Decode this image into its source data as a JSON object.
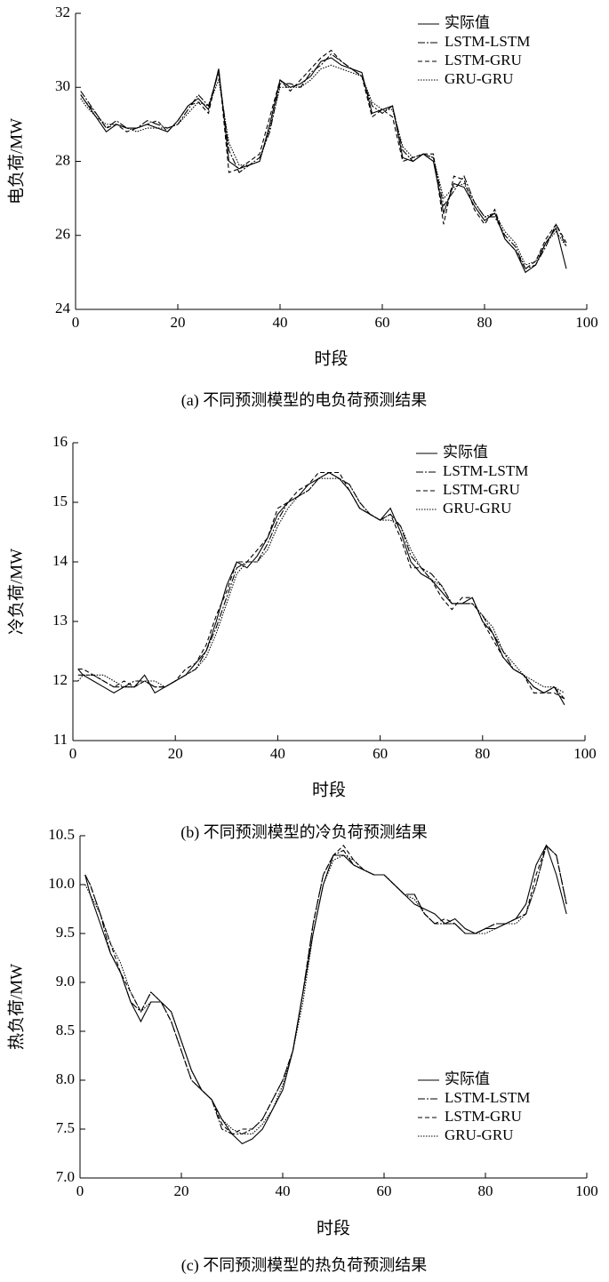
{
  "chart_data": [
    {
      "type": "line",
      "caption": "(a) 不同预测模型的电负荷预测结果",
      "x_label": "时段",
      "y_label": "电负荷/MW",
      "xlim": [
        0,
        100
      ],
      "xticks": [
        0,
        20,
        40,
        60,
        80,
        100
      ],
      "ylim": [
        24,
        32
      ],
      "yticks": [
        24,
        26,
        28,
        30,
        32
      ],
      "legend": "upper right",
      "x": [
        1,
        2,
        4,
        6,
        8,
        10,
        12,
        14,
        16,
        18,
        20,
        22,
        24,
        26,
        28,
        30,
        32,
        34,
        36,
        38,
        40,
        42,
        44,
        46,
        48,
        50,
        52,
        54,
        56,
        58,
        60,
        62,
        64,
        66,
        68,
        70,
        72,
        74,
        76,
        78,
        80,
        82,
        84,
        86,
        88,
        90,
        92,
        94,
        96
      ],
      "series": [
        {
          "name": "实际值",
          "color": "#000000",
          "linestyle": "solid",
          "values": [
            29.8,
            29.6,
            29.2,
            28.8,
            29.0,
            28.9,
            28.9,
            29.0,
            28.9,
            28.8,
            29.1,
            29.5,
            29.7,
            29.4,
            30.5,
            28.0,
            27.8,
            27.9,
            28.0,
            29.0,
            30.2,
            30.0,
            30.1,
            30.3,
            30.7,
            30.8,
            30.6,
            30.5,
            30.4,
            29.3,
            29.4,
            29.5,
            28.1,
            28.0,
            28.2,
            28.0,
            26.6,
            27.4,
            27.3,
            26.8,
            26.4,
            26.6,
            25.9,
            25.6,
            25.0,
            25.2,
            25.8,
            26.2,
            25.1
          ]
        },
        {
          "name": "LSTM-LSTM",
          "color": "#000000",
          "linestyle": "dashdot",
          "values": [
            29.9,
            29.7,
            29.3,
            28.9,
            29.1,
            28.9,
            28.9,
            29.1,
            29.0,
            28.9,
            29.0,
            29.4,
            29.8,
            29.5,
            30.4,
            28.3,
            27.7,
            27.9,
            28.1,
            28.8,
            30.1,
            30.1,
            30.0,
            30.4,
            30.6,
            30.9,
            30.7,
            30.5,
            30.3,
            29.5,
            29.3,
            29.5,
            28.3,
            28.0,
            28.2,
            28.1,
            26.8,
            27.2,
            27.6,
            26.9,
            26.5,
            26.5,
            26.0,
            25.7,
            25.1,
            25.2,
            25.7,
            26.3,
            25.7
          ]
        },
        {
          "name": "LSTM-GRU",
          "color": "#000000",
          "linestyle": "dashed",
          "values": [
            29.8,
            29.6,
            29.3,
            28.9,
            29.0,
            28.8,
            28.9,
            29.0,
            29.1,
            28.8,
            29.1,
            29.5,
            29.6,
            29.3,
            30.5,
            27.7,
            27.8,
            28.0,
            28.2,
            29.2,
            30.2,
            29.9,
            30.2,
            30.5,
            30.8,
            31.0,
            30.7,
            30.5,
            30.3,
            29.2,
            29.4,
            29.2,
            28.0,
            28.1,
            28.2,
            28.2,
            26.3,
            27.6,
            27.5,
            26.7,
            26.3,
            26.7,
            25.9,
            25.6,
            25.1,
            25.3,
            25.9,
            26.3,
            25.8
          ]
        },
        {
          "name": "GRU-GRU",
          "color": "#000000",
          "linestyle": "dotted",
          "values": [
            29.7,
            29.5,
            29.2,
            29.0,
            29.0,
            28.9,
            28.8,
            28.9,
            28.9,
            28.9,
            29.0,
            29.3,
            29.6,
            29.5,
            30.2,
            28.5,
            27.9,
            27.9,
            28.0,
            28.9,
            30.0,
            30.0,
            30.0,
            30.2,
            30.5,
            30.6,
            30.5,
            30.4,
            30.3,
            29.6,
            29.4,
            29.4,
            28.4,
            28.1,
            28.2,
            28.1,
            27.0,
            27.3,
            27.4,
            26.9,
            26.5,
            26.6,
            26.1,
            25.8,
            25.2,
            25.3,
            25.8,
            26.1,
            25.7
          ]
        }
      ]
    },
    {
      "type": "line",
      "caption": "(b) 不同预测模型的冷负荷预测结果",
      "x_label": "时段",
      "y_label": "冷负荷/MW",
      "xlim": [
        0,
        100
      ],
      "xticks": [
        0,
        20,
        40,
        60,
        80,
        100
      ],
      "ylim": [
        11,
        16
      ],
      "yticks": [
        11,
        12,
        13,
        14,
        15,
        16
      ],
      "legend": "upper right",
      "x": [
        1,
        2,
        4,
        6,
        8,
        10,
        12,
        14,
        16,
        18,
        20,
        22,
        24,
        26,
        28,
        30,
        32,
        34,
        36,
        38,
        40,
        42,
        44,
        46,
        48,
        50,
        52,
        54,
        56,
        58,
        60,
        62,
        64,
        66,
        68,
        70,
        72,
        74,
        76,
        78,
        80,
        82,
        84,
        86,
        88,
        90,
        92,
        94,
        96
      ],
      "series": [
        {
          "name": "实际值",
          "color": "#000000",
          "linestyle": "solid",
          "values": [
            12.2,
            12.1,
            12.0,
            11.9,
            11.8,
            11.9,
            11.9,
            12.1,
            11.8,
            11.9,
            12.0,
            12.1,
            12.3,
            12.5,
            13.0,
            13.6,
            14.0,
            13.9,
            14.1,
            14.4,
            14.8,
            15.0,
            15.1,
            15.3,
            15.4,
            15.5,
            15.4,
            15.2,
            14.9,
            14.8,
            14.7,
            14.9,
            14.5,
            14.0,
            13.8,
            13.7,
            13.5,
            13.3,
            13.3,
            13.4,
            13.0,
            12.8,
            12.4,
            12.2,
            12.1,
            11.9,
            11.8,
            11.9,
            11.6
          ]
        },
        {
          "name": "LSTM-LSTM",
          "color": "#000000",
          "linestyle": "dashdot",
          "values": [
            12.1,
            12.1,
            12.1,
            12.0,
            11.9,
            11.9,
            12.0,
            12.0,
            11.9,
            11.9,
            12.0,
            12.1,
            12.2,
            12.5,
            12.9,
            13.4,
            13.9,
            14.0,
            14.0,
            14.3,
            14.7,
            15.0,
            15.1,
            15.2,
            15.4,
            15.5,
            15.4,
            15.3,
            15.0,
            14.8,
            14.7,
            14.8,
            14.6,
            14.1,
            13.9,
            13.8,
            13.6,
            13.3,
            13.3,
            13.3,
            13.1,
            12.8,
            12.5,
            12.2,
            12.1,
            11.9,
            11.8,
            11.9,
            11.7
          ]
        },
        {
          "name": "LSTM-GRU",
          "color": "#000000",
          "linestyle": "dashed",
          "values": [
            12.2,
            12.2,
            12.1,
            12.0,
            11.9,
            12.0,
            11.9,
            12.0,
            11.9,
            11.9,
            12.0,
            12.2,
            12.3,
            12.6,
            13.1,
            13.5,
            14.0,
            14.0,
            14.2,
            14.4,
            14.9,
            15.0,
            15.2,
            15.3,
            15.5,
            15.5,
            15.5,
            15.2,
            14.9,
            14.8,
            14.7,
            14.8,
            14.4,
            13.9,
            13.9,
            13.7,
            13.4,
            13.2,
            13.4,
            13.4,
            13.0,
            12.7,
            12.4,
            12.2,
            12.1,
            11.8,
            11.8,
            11.8,
            11.7
          ]
        },
        {
          "name": "GRU-GRU",
          "color": "#000000",
          "linestyle": "dotted",
          "values": [
            12.0,
            12.1,
            12.1,
            12.1,
            12.0,
            11.9,
            11.9,
            12.0,
            12.0,
            11.9,
            12.0,
            12.1,
            12.2,
            12.4,
            12.8,
            13.3,
            13.8,
            14.0,
            14.0,
            14.2,
            14.6,
            14.9,
            15.1,
            15.2,
            15.4,
            15.4,
            15.4,
            15.3,
            15.0,
            14.8,
            14.7,
            14.7,
            14.6,
            14.2,
            13.9,
            13.7,
            13.6,
            13.3,
            13.3,
            13.3,
            13.1,
            12.9,
            12.5,
            12.3,
            12.1,
            12.0,
            11.9,
            11.9,
            11.8
          ]
        }
      ]
    },
    {
      "type": "line",
      "caption": "(c) 不同预测模型的热负荷预测结果",
      "x_label": "时段",
      "y_label": "热负荷/MW",
      "xlim": [
        0,
        100
      ],
      "xticks": [
        0,
        20,
        40,
        60,
        80,
        100
      ],
      "ylim": [
        7,
        10.5
      ],
      "yticks": [
        {
          "value": 7,
          "label": "7.0"
        },
        7.5,
        {
          "value": 8,
          "label": "8.0"
        },
        8.5,
        {
          "value": 9,
          "label": "9.0"
        },
        9.5,
        {
          "value": 10,
          "label": "10.0"
        },
        10.5
      ],
      "legend": "lower right",
      "x": [
        1,
        2,
        4,
        6,
        8,
        10,
        12,
        14,
        16,
        18,
        20,
        22,
        24,
        26,
        28,
        30,
        32,
        34,
        36,
        38,
        40,
        42,
        44,
        46,
        48,
        50,
        52,
        54,
        56,
        58,
        60,
        62,
        64,
        66,
        68,
        70,
        72,
        74,
        76,
        78,
        80,
        82,
        84,
        86,
        88,
        90,
        92,
        94,
        96
      ],
      "series": [
        {
          "name": "实际值",
          "color": "#000000",
          "linestyle": "solid",
          "values": [
            10.1,
            9.9,
            9.6,
            9.3,
            9.1,
            8.8,
            8.6,
            8.8,
            8.8,
            8.7,
            8.4,
            8.1,
            7.9,
            7.8,
            7.6,
            7.45,
            7.35,
            7.4,
            7.5,
            7.7,
            7.9,
            8.3,
            8.9,
            9.5,
            10.0,
            10.3,
            10.3,
            10.2,
            10.15,
            10.1,
            10.1,
            10.0,
            9.9,
            9.8,
            9.75,
            9.7,
            9.6,
            9.65,
            9.55,
            9.5,
            9.55,
            9.55,
            9.6,
            9.65,
            9.8,
            10.2,
            10.4,
            10.1,
            9.7
          ]
        },
        {
          "name": "LSTM-LSTM",
          "color": "#000000",
          "linestyle": "dashdot",
          "values": [
            10.1,
            10.0,
            9.7,
            9.3,
            9.1,
            8.8,
            8.7,
            8.9,
            8.8,
            8.6,
            8.3,
            8.0,
            7.9,
            7.8,
            7.5,
            7.45,
            7.45,
            7.5,
            7.6,
            7.8,
            8.0,
            8.3,
            8.9,
            9.6,
            10.1,
            10.3,
            10.35,
            10.2,
            10.15,
            10.1,
            10.1,
            10.0,
            9.9,
            9.9,
            9.7,
            9.6,
            9.6,
            9.6,
            9.5,
            9.5,
            9.55,
            9.6,
            9.6,
            9.65,
            9.7,
            10.0,
            10.4,
            10.3,
            9.8
          ]
        },
        {
          "name": "LSTM-GRU",
          "color": "#000000",
          "linestyle": "dashed",
          "values": [
            10.1,
            10.0,
            9.7,
            9.4,
            9.1,
            8.9,
            8.7,
            8.9,
            8.8,
            8.6,
            8.3,
            8.0,
            7.9,
            7.8,
            7.55,
            7.45,
            7.5,
            7.5,
            7.6,
            7.8,
            8.0,
            8.3,
            8.9,
            9.6,
            10.1,
            10.3,
            10.4,
            10.25,
            10.15,
            10.1,
            10.1,
            10.0,
            9.9,
            9.9,
            9.7,
            9.6,
            9.65,
            9.6,
            9.5,
            9.5,
            9.55,
            9.6,
            9.6,
            9.65,
            9.7,
            10.1,
            10.4,
            10.3,
            9.8
          ]
        },
        {
          "name": "GRU-GRU",
          "color": "#000000",
          "linestyle": "dotted",
          "values": [
            10.0,
            9.9,
            9.7,
            9.4,
            9.2,
            8.9,
            8.7,
            8.8,
            8.8,
            8.7,
            8.4,
            8.1,
            7.9,
            7.8,
            7.6,
            7.5,
            7.45,
            7.45,
            7.55,
            7.7,
            7.95,
            8.3,
            8.8,
            9.5,
            10.0,
            10.25,
            10.3,
            10.25,
            10.15,
            10.1,
            10.1,
            10.0,
            9.9,
            9.85,
            9.7,
            9.6,
            9.6,
            9.6,
            9.5,
            9.5,
            9.5,
            9.55,
            9.6,
            9.6,
            9.7,
            10.0,
            10.4,
            10.3,
            9.8
          ]
        }
      ]
    }
  ]
}
